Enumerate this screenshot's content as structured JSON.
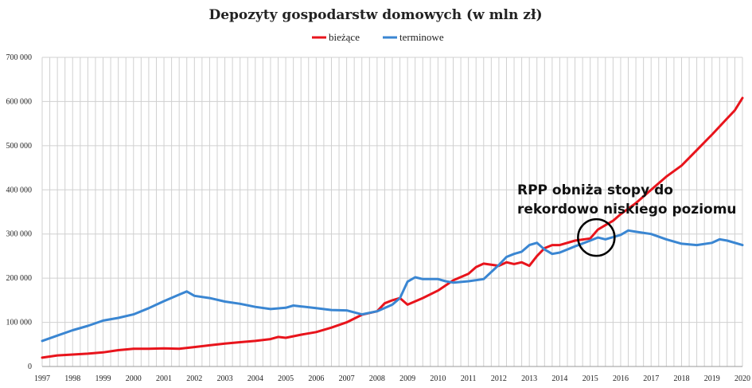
{
  "chart_data": {
    "type": "line",
    "title": "Depozyty gospodarstw domowych (w mln zł)",
    "xlabel": "",
    "ylabel": "",
    "ylim": [
      0,
      700000
    ],
    "yticks": [
      "0",
      "100 000",
      "200 000",
      "300 000",
      "400 000",
      "500 000",
      "600 000",
      "700 000"
    ],
    "xticks": [
      "1997",
      "1998",
      "1999",
      "2000",
      "2001",
      "2002",
      "2003",
      "2004",
      "2005",
      "2006",
      "2007",
      "2008",
      "2009",
      "2010",
      "2011",
      "2012",
      "2013",
      "2014",
      "2015",
      "2016",
      "2017",
      "2018",
      "2019",
      "2020"
    ],
    "xlim": [
      1997,
      2020
    ],
    "grid": true,
    "legend_position": "top",
    "series": [
      {
        "name": "bieżące",
        "color": "#e8141c",
        "points": [
          [
            1997.0,
            20000
          ],
          [
            1997.5,
            25000
          ],
          [
            1998.0,
            27000
          ],
          [
            1998.5,
            29000
          ],
          [
            1999.0,
            32000
          ],
          [
            1999.5,
            37000
          ],
          [
            2000.0,
            40000
          ],
          [
            2000.5,
            40000
          ],
          [
            2001.0,
            41000
          ],
          [
            2001.5,
            40000
          ],
          [
            2002.0,
            44000
          ],
          [
            2002.5,
            48000
          ],
          [
            2003.0,
            52000
          ],
          [
            2003.5,
            55000
          ],
          [
            2004.0,
            58000
          ],
          [
            2004.5,
            62000
          ],
          [
            2004.75,
            67000
          ],
          [
            2005.0,
            65000
          ],
          [
            2005.5,
            72000
          ],
          [
            2006.0,
            78000
          ],
          [
            2006.5,
            88000
          ],
          [
            2007.0,
            100000
          ],
          [
            2007.5,
            117000
          ],
          [
            2008.0,
            125000
          ],
          [
            2008.25,
            143000
          ],
          [
            2008.5,
            150000
          ],
          [
            2008.75,
            155000
          ],
          [
            2009.0,
            140000
          ],
          [
            2009.5,
            155000
          ],
          [
            2010.0,
            172000
          ],
          [
            2010.5,
            195000
          ],
          [
            2011.0,
            210000
          ],
          [
            2011.25,
            225000
          ],
          [
            2011.5,
            233000
          ],
          [
            2012.0,
            228000
          ],
          [
            2012.25,
            236000
          ],
          [
            2012.5,
            232000
          ],
          [
            2012.75,
            236000
          ],
          [
            2013.0,
            228000
          ],
          [
            2013.25,
            250000
          ],
          [
            2013.5,
            268000
          ],
          [
            2013.75,
            275000
          ],
          [
            2014.0,
            275000
          ],
          [
            2014.5,
            285000
          ],
          [
            2015.0,
            290000
          ],
          [
            2015.25,
            310000
          ],
          [
            2015.5,
            320000
          ],
          [
            2015.75,
            330000
          ],
          [
            2016.0,
            345000
          ],
          [
            2016.5,
            370000
          ],
          [
            2017.0,
            400000
          ],
          [
            2017.5,
            430000
          ],
          [
            2018.0,
            455000
          ],
          [
            2018.5,
            490000
          ],
          [
            2019.0,
            525000
          ],
          [
            2019.5,
            562000
          ],
          [
            2019.75,
            580000
          ],
          [
            2020.0,
            608000
          ]
        ]
      },
      {
        "name": "terminowe",
        "color": "#3a86d2",
        "points": [
          [
            1997.0,
            58000
          ],
          [
            1997.5,
            70000
          ],
          [
            1998.0,
            82000
          ],
          [
            1998.5,
            92000
          ],
          [
            1999.0,
            104000
          ],
          [
            1999.5,
            110000
          ],
          [
            2000.0,
            118000
          ],
          [
            2000.5,
            132000
          ],
          [
            2001.0,
            148000
          ],
          [
            2001.5,
            163000
          ],
          [
            2001.75,
            170000
          ],
          [
            2002.0,
            160000
          ],
          [
            2002.5,
            155000
          ],
          [
            2003.0,
            147000
          ],
          [
            2003.5,
            142000
          ],
          [
            2004.0,
            135000
          ],
          [
            2004.5,
            130000
          ],
          [
            2005.0,
            133000
          ],
          [
            2005.25,
            138000
          ],
          [
            2005.5,
            136000
          ],
          [
            2006.0,
            132000
          ],
          [
            2006.5,
            128000
          ],
          [
            2007.0,
            127000
          ],
          [
            2007.5,
            118000
          ],
          [
            2008.0,
            125000
          ],
          [
            2008.5,
            140000
          ],
          [
            2008.75,
            155000
          ],
          [
            2009.0,
            192000
          ],
          [
            2009.25,
            202000
          ],
          [
            2009.5,
            198000
          ],
          [
            2010.0,
            198000
          ],
          [
            2010.25,
            193000
          ],
          [
            2010.5,
            190000
          ],
          [
            2011.0,
            193000
          ],
          [
            2011.5,
            198000
          ],
          [
            2012.0,
            230000
          ],
          [
            2012.25,
            248000
          ],
          [
            2012.5,
            255000
          ],
          [
            2012.75,
            260000
          ],
          [
            2013.0,
            275000
          ],
          [
            2013.25,
            280000
          ],
          [
            2013.5,
            265000
          ],
          [
            2013.75,
            255000
          ],
          [
            2014.0,
            258000
          ],
          [
            2014.5,
            272000
          ],
          [
            2015.0,
            285000
          ],
          [
            2015.25,
            292000
          ],
          [
            2015.5,
            288000
          ],
          [
            2016.0,
            298000
          ],
          [
            2016.25,
            308000
          ],
          [
            2016.5,
            305000
          ],
          [
            2017.0,
            300000
          ],
          [
            2017.5,
            288000
          ],
          [
            2018.0,
            278000
          ],
          [
            2018.5,
            275000
          ],
          [
            2019.0,
            280000
          ],
          [
            2019.25,
            288000
          ],
          [
            2019.5,
            285000
          ],
          [
            2020.0,
            275000
          ]
        ]
      }
    ],
    "annotation": {
      "lines": [
        "RPP obniża stopy do",
        "rekordowo niskiego poziomu"
      ],
      "circle_at": [
        2015.2,
        292000
      ]
    }
  }
}
